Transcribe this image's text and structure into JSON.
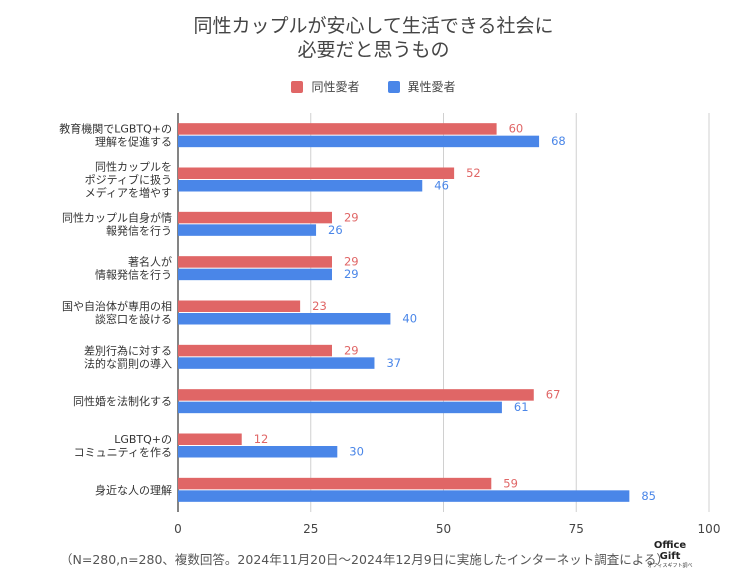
{
  "chart_data": {
    "type": "bar",
    "orientation": "horizontal",
    "title_line1": "同性カップルが安心して生活できる社会に",
    "title_line2": "必要だと思うもの",
    "categories": [
      [
        "教育機関でLGBTQ+の",
        "理解を促進する"
      ],
      [
        "同性カップルを",
        "ポジティブに扱う",
        "メディアを増やす"
      ],
      [
        "同性カップル自身が情",
        "報発信を行う"
      ],
      [
        "著名人が",
        "情報発信を行う"
      ],
      [
        "国や自治体が専用の相",
        "談窓口を設ける"
      ],
      [
        "差別行為に対する",
        "法的な罰則の導入"
      ],
      [
        "同性婚を法制化する"
      ],
      [
        "LGBTQ+の",
        "コミュニティを作る"
      ],
      [
        "身近な人の理解"
      ]
    ],
    "series": [
      {
        "name": "同性愛者",
        "color": "#e06666",
        "values": [
          60,
          52,
          29,
          29,
          23,
          29,
          67,
          12,
          59
        ]
      },
      {
        "name": "異性愛者",
        "color": "#4a86e8",
        "values": [
          68,
          46,
          26,
          29,
          40,
          37,
          61,
          30,
          85
        ]
      }
    ],
    "xlim": [
      0,
      100
    ],
    "xticks": [
      0,
      25,
      50,
      75,
      100
    ],
    "grid": true,
    "legend": "top-center"
  },
  "footnote": "（N=280,n=280、複数回答。2024年11月20日〜2024年12月9日に実施したインターネット調査による）",
  "logo": {
    "line1": "Office",
    "line2": "Gift",
    "line3": "オフィスギフト調べ"
  }
}
